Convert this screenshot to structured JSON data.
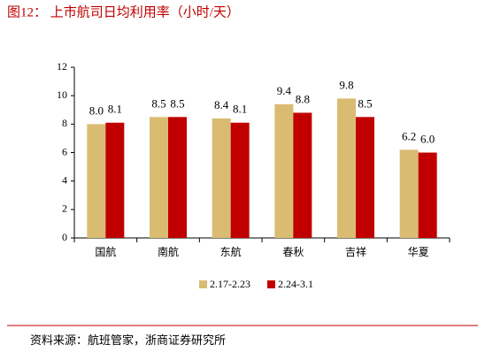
{
  "chart_data": {
    "type": "bar",
    "title": "图12：  上市航司日均利用率（小时/天）",
    "source": "资料来源：航班管家，浙商证券研究所",
    "categories": [
      "国航",
      "南航",
      "东航",
      "春秋",
      "吉祥",
      "华夏"
    ],
    "series": [
      {
        "name": "2.17-2.23",
        "color": "#D9BC72",
        "values": [
          8.0,
          8.5,
          8.4,
          9.4,
          9.8,
          6.2
        ],
        "value_labels": [
          "8.0",
          "8.5",
          "8.4",
          "9.4",
          "9.8",
          "6.2"
        ]
      },
      {
        "name": "2.24-3.1",
        "color": "#C00000",
        "values": [
          8.1,
          8.5,
          8.1,
          8.8,
          8.5,
          6.0
        ],
        "value_labels": [
          "8.1",
          "8.5",
          "8.1",
          "8.8",
          "8.5",
          "6.0"
        ]
      }
    ],
    "ylim": [
      0,
      12
    ],
    "yticks": [
      0,
      2,
      4,
      6,
      8,
      10,
      12
    ],
    "grid": false,
    "legend": "bottom"
  }
}
